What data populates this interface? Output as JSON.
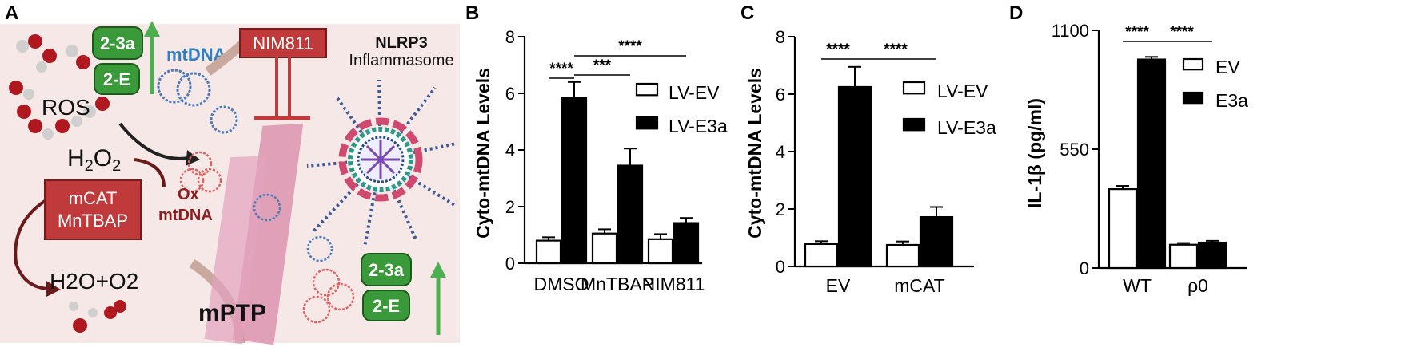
{
  "panels": {
    "A": "A",
    "B": "B",
    "C": "C",
    "D": "D"
  },
  "schematic": {
    "label_23a": "2-3a",
    "label_2e": "2-E",
    "mtdna": "mtDNA",
    "ros": "ROS",
    "h2o2": "H2O2",
    "h2o2_main": "H",
    "h2o2_sub": "2",
    "h2o2_o": "O",
    "mcat": "mCAT",
    "mntbap": "MnTBAP",
    "ox": "Ox",
    "ox_mtdna": "mtDNA",
    "h2o_o2": "H2O+O2",
    "nim811": "NIM811",
    "nlrp3": "NLRP3",
    "inflammasome": "Inflammasome",
    "mptp": "mPTP"
  },
  "chart_data": [
    {
      "panel": "B",
      "type": "bar",
      "ylabel": "Cyto-mtDNA Levels",
      "ylim": [
        0,
        8
      ],
      "yticks": [
        0,
        2,
        4,
        6,
        8
      ],
      "categories": [
        "DMSO",
        "MnTBAP",
        "NIM811"
      ],
      "series": [
        {
          "name": "LV-EV",
          "values": [
            0.8,
            1.05,
            0.85
          ],
          "errors": [
            0.12,
            0.15,
            0.18
          ]
        },
        {
          "name": "LV-E3a",
          "values": [
            5.85,
            3.45,
            1.42
          ],
          "errors": [
            0.55,
            0.6,
            0.18
          ]
        }
      ],
      "significance": [
        {
          "label": "****",
          "from": "DMSO-EV",
          "to": "DMSO-E3a"
        },
        {
          "label": "***",
          "from": "DMSO-E3a",
          "to": "MnTBAP-E3a"
        },
        {
          "label": "****",
          "from": "DMSO-E3a",
          "to": "NIM811-E3a"
        }
      ],
      "legend_position": "right"
    },
    {
      "panel": "C",
      "type": "bar",
      "ylabel": "Cyto-mtDNA Levels",
      "ylim": [
        0,
        8
      ],
      "yticks": [
        0,
        2,
        4,
        6,
        8
      ],
      "categories": [
        "EV",
        "mCAT"
      ],
      "series": [
        {
          "name": "LV-EV",
          "values": [
            0.78,
            0.75
          ],
          "errors": [
            0.1,
            0.12
          ]
        },
        {
          "name": "LV-E3a",
          "values": [
            6.25,
            1.72
          ],
          "errors": [
            0.7,
            0.35
          ]
        }
      ],
      "significance": [
        {
          "label": "****",
          "from": "EV-EV",
          "to": "EV-E3a"
        },
        {
          "label": "****",
          "from": "EV-E3a",
          "to": "mCAT-E3a"
        }
      ],
      "legend_position": "right"
    },
    {
      "panel": "D",
      "type": "bar",
      "ylabel": "IL-1β (pg/ml)",
      "ylim": [
        0,
        1100
      ],
      "yticks": [
        0,
        550,
        1100
      ],
      "categories": [
        "WT",
        "ρ0"
      ],
      "series": [
        {
          "name": "EV",
          "values": [
            365,
            108
          ],
          "errors": [
            15,
            8
          ]
        },
        {
          "name": "E3a",
          "values": [
            965,
            118
          ],
          "errors": [
            12,
            8
          ]
        }
      ],
      "significance": [
        {
          "label": "****",
          "from": "WT-EV",
          "to": "WT-E3a"
        },
        {
          "label": "****",
          "from": "WT-E3a",
          "to": "ρ0-E3a"
        }
      ],
      "legend_position": "top-right"
    }
  ]
}
